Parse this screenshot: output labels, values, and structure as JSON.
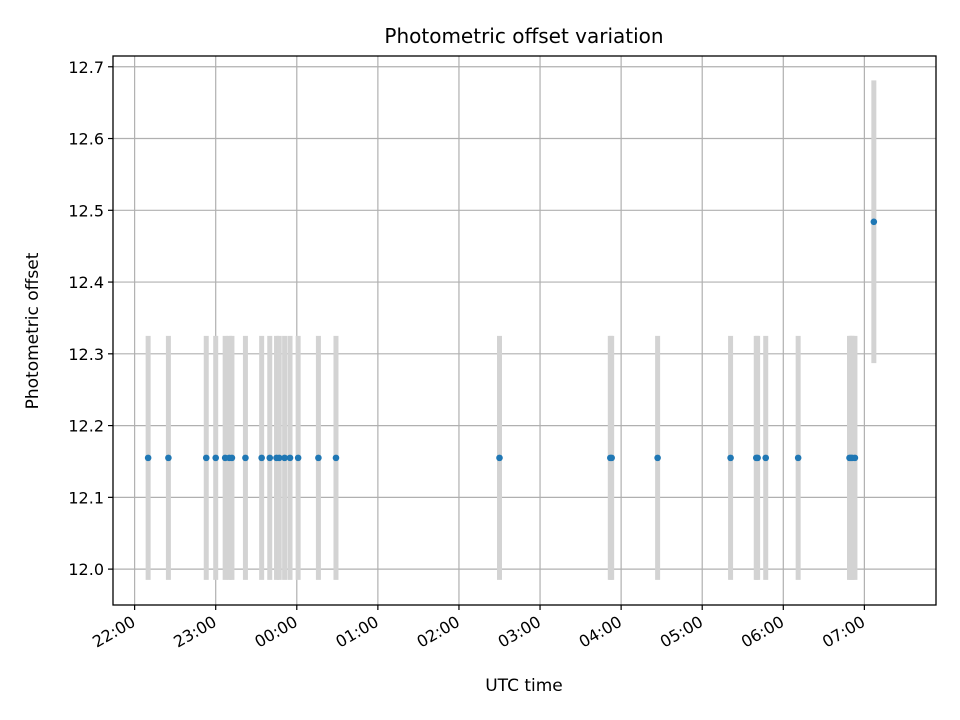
{
  "chart_data": {
    "type": "scatter",
    "title": "Photometric offset variation",
    "xlabel": "UTC time",
    "ylabel": "Photometric offset",
    "grid": true,
    "xlim": [
      "21:44",
      "07:53"
    ],
    "ylim": [
      11.95,
      12.715
    ],
    "x_ticks": [
      "22:00",
      "23:00",
      "00:00",
      "01:00",
      "02:00",
      "03:00",
      "04:00",
      "05:00",
      "06:00",
      "07:00"
    ],
    "y_ticks": [
      "12.0",
      "12.1",
      "12.2",
      "12.3",
      "12.4",
      "12.5",
      "12.6",
      "12.7"
    ],
    "errorbar_color": "#d3d3d3",
    "marker_color": "#1f77b4",
    "points": [
      {
        "x": "22:10",
        "y": 12.155,
        "err": 0.17
      },
      {
        "x": "22:25",
        "y": 12.155,
        "err": 0.17
      },
      {
        "x": "22:53",
        "y": 12.155,
        "err": 0.17
      },
      {
        "x": "23:00",
        "y": 12.155,
        "err": 0.17
      },
      {
        "x": "23:07",
        "y": 12.155,
        "err": 0.17
      },
      {
        "x": "23:10",
        "y": 12.155,
        "err": 0.17
      },
      {
        "x": "23:12",
        "y": 12.155,
        "err": 0.17
      },
      {
        "x": "23:22",
        "y": 12.155,
        "err": 0.17
      },
      {
        "x": "23:34",
        "y": 12.155,
        "err": 0.17
      },
      {
        "x": "23:40",
        "y": 12.155,
        "err": 0.17
      },
      {
        "x": "23:45",
        "y": 12.155,
        "err": 0.17
      },
      {
        "x": "23:47",
        "y": 12.155,
        "err": 0.17
      },
      {
        "x": "23:51",
        "y": 12.155,
        "err": 0.17
      },
      {
        "x": "23:55",
        "y": 12.155,
        "err": 0.17
      },
      {
        "x": "00:01",
        "y": 12.155,
        "err": 0.17
      },
      {
        "x": "00:16",
        "y": 12.155,
        "err": 0.17
      },
      {
        "x": "00:29",
        "y": 12.155,
        "err": 0.17
      },
      {
        "x": "02:30",
        "y": 12.155,
        "err": 0.17
      },
      {
        "x": "03:52",
        "y": 12.155,
        "err": 0.17
      },
      {
        "x": "03:53",
        "y": 12.155,
        "err": 0.17
      },
      {
        "x": "04:27",
        "y": 12.155,
        "err": 0.17
      },
      {
        "x": "05:21",
        "y": 12.155,
        "err": 0.17
      },
      {
        "x": "05:40",
        "y": 12.155,
        "err": 0.17
      },
      {
        "x": "05:41",
        "y": 12.155,
        "err": 0.17
      },
      {
        "x": "05:47",
        "y": 12.155,
        "err": 0.17
      },
      {
        "x": "06:11",
        "y": 12.155,
        "err": 0.17
      },
      {
        "x": "06:49",
        "y": 12.155,
        "err": 0.17
      },
      {
        "x": "06:50",
        "y": 12.155,
        "err": 0.17
      },
      {
        "x": "06:51",
        "y": 12.155,
        "err": 0.17
      },
      {
        "x": "06:53",
        "y": 12.155,
        "err": 0.17
      },
      {
        "x": "07:07",
        "y": 12.484,
        "err": 0.197
      }
    ]
  }
}
